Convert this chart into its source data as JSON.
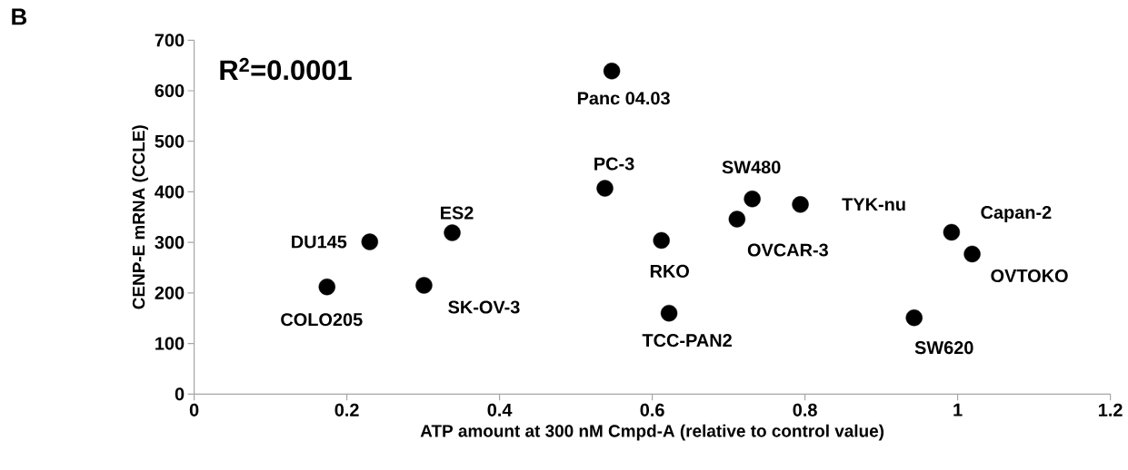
{
  "chart_data": {
    "type": "scatter",
    "xlabel": "ATP amount at 300 nM Cmpd-A (relative to control value)",
    "ylabel": "CENP-E mRNA (CCLE)",
    "x": [
      0.174,
      0.23,
      0.301,
      0.338,
      0.538,
      0.547,
      0.612,
      0.622,
      0.711,
      0.731,
      0.794,
      0.992,
      1.019,
      0.943
    ],
    "values": [
      212,
      301,
      215,
      319,
      407,
      639,
      304,
      160,
      346,
      386,
      375,
      320,
      277,
      151
    ],
    "color": "#000000",
    "marker": "circle",
    "grid": false,
    "xlim": [
      0,
      1.2
    ],
    "ylim": [
      0,
      700
    ],
    "xticks": [
      0,
      0.2,
      0.4,
      0.6,
      0.8,
      1,
      1.2
    ],
    "yticks": [
      0,
      100,
      200,
      300,
      400,
      500,
      600,
      700
    ],
    "annotations": [
      "B",
      "R$^{2}$=0.0001",
      {
        "text": "COLO205",
        "x": 0.174,
        "y": 212
      },
      {
        "text": "DU145",
        "x": 0.23,
        "y": 301
      },
      {
        "text": "SK-OV-3",
        "x": 0.301,
        "y": 215
      },
      {
        "text": "ES2",
        "x": 0.338,
        "y": 319
      },
      {
        "text": "PC-3",
        "x": 0.538,
        "y": 407
      },
      {
        "text": "Panc 04.03",
        "x": 0.547,
        "y": 639
      },
      {
        "text": "RKO",
        "x": 0.612,
        "y": 304
      },
      {
        "text": "TCC-PAN2",
        "x": 0.622,
        "y": 160
      },
      {
        "text": "OVCAR-3",
        "x": 0.711,
        "y": 346
      },
      {
        "text": "SW480",
        "x": 0.731,
        "y": 386
      },
      {
        "text": "TYK-nu",
        "x": 0.794,
        "y": 375
      },
      {
        "text": "Capan-2",
        "x": 0.992,
        "y": 320
      },
      {
        "text": "OVTOKO",
        "x": 1.019,
        "y": 277
      },
      {
        "text": "SW620",
        "x": 0.943,
        "y": 151
      }
    ]
  }
}
